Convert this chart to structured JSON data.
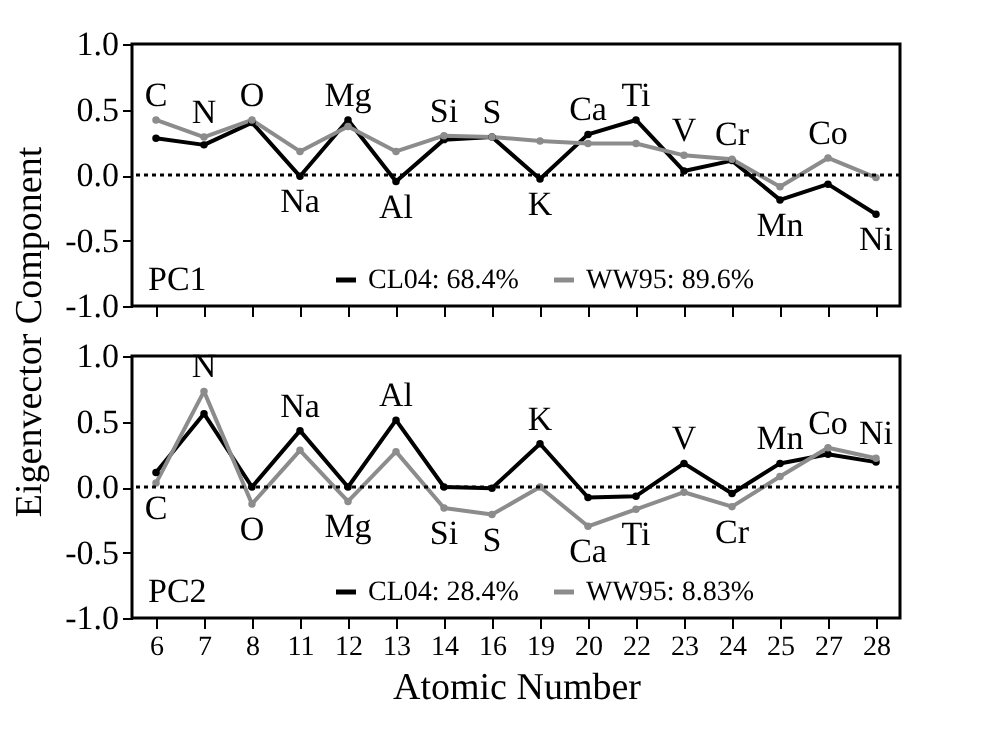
{
  "chart_data": [
    {
      "type": "line",
      "categories": [
        "6",
        "7",
        "8",
        "11",
        "12",
        "13",
        "14",
        "16",
        "19",
        "20",
        "22",
        "23",
        "24",
        "25",
        "27",
        "28"
      ],
      "series": [
        {
          "name": "CL04: 68.4%",
          "color": "#000000",
          "values": [
            0.28,
            0.23,
            0.4,
            -0.01,
            0.42,
            -0.05,
            0.27,
            0.29,
            -0.03,
            0.31,
            0.42,
            0.03,
            0.11,
            -0.19,
            -0.07,
            -0.3
          ]
        },
        {
          "name": "WW95: 89.6%",
          "color": "#8c8c8c",
          "values": [
            0.42,
            0.29,
            0.42,
            0.18,
            0.37,
            0.18,
            0.3,
            0.29,
            0.26,
            0.24,
            0.24,
            0.15,
            0.12,
            -0.09,
            0.13,
            -0.02
          ]
        }
      ],
      "ylabel": "Eigenvector Component",
      "ylim": [
        -1,
        1
      ],
      "yticks": [
        {
          "value": -1,
          "label": "-1.0"
        },
        {
          "value": -0.5,
          "label": "-0.5"
        },
        {
          "value": 0,
          "label": "0.0"
        },
        {
          "value": 0.5,
          "label": "0.5"
        },
        {
          "value": 1,
          "label": "1.0"
        }
      ],
      "ref_lines": [
        {
          "axis": "y",
          "value": 0,
          "line_style": "dotted"
        }
      ],
      "annotations": [
        "PC1",
        {
          "text": "C",
          "x": "6",
          "y": 0.42
        },
        {
          "text": "N",
          "x": "7",
          "y": 0.29
        },
        {
          "text": "O",
          "x": "8",
          "y": 0.42
        },
        {
          "text": "Na",
          "x": "11",
          "y": -0.01
        },
        {
          "text": "Mg",
          "x": "12",
          "y": 0.42
        },
        {
          "text": "Al",
          "x": "13",
          "y": -0.05
        },
        {
          "text": "Si",
          "x": "14",
          "y": 0.3
        },
        {
          "text": "S",
          "x": "16",
          "y": 0.29
        },
        {
          "text": "K",
          "x": "19",
          "y": -0.03
        },
        {
          "text": "Ca",
          "x": "20",
          "y": 0.31
        },
        {
          "text": "Ti",
          "x": "22",
          "y": 0.42
        },
        {
          "text": "V",
          "x": "23",
          "y": 0.15
        },
        {
          "text": "Cr",
          "x": "24",
          "y": 0.12
        },
        {
          "text": "Mn",
          "x": "25",
          "y": -0.19
        },
        {
          "text": "Co",
          "x": "27",
          "y": 0.13
        },
        {
          "text": "Ni",
          "x": "28",
          "y": -0.3
        }
      ],
      "legend": "bottom",
      "grid": false,
      "marker": "circle",
      "line_style": "solid",
      "tick_labels": "y"
    },
    {
      "type": "line",
      "categories": [
        "6",
        "7",
        "8",
        "11",
        "12",
        "13",
        "14",
        "16",
        "19",
        "20",
        "22",
        "23",
        "24",
        "25",
        "27",
        "28"
      ],
      "series": [
        {
          "name": "CL04: 28.4%",
          "color": "#000000",
          "values": [
            0.11,
            0.56,
            0.0,
            0.43,
            0.0,
            0.51,
            0.0,
            -0.01,
            0.33,
            -0.08,
            -0.07,
            0.18,
            -0.05,
            0.18,
            0.25,
            0.19
          ]
        },
        {
          "name": "WW95: 8.83%",
          "color": "#8c8c8c",
          "values": [
            0.03,
            0.73,
            -0.13,
            0.28,
            -0.11,
            0.27,
            -0.16,
            -0.21,
            0.0,
            -0.3,
            -0.17,
            -0.04,
            -0.15,
            0.08,
            0.3,
            0.22
          ]
        }
      ],
      "xlabel": "Atomic Number",
      "ylim": [
        -1,
        1
      ],
      "yticks": [
        {
          "value": -1,
          "label": "-1.0"
        },
        {
          "value": -0.5,
          "label": "-0.5"
        },
        {
          "value": 0,
          "label": "0.0"
        },
        {
          "value": 0.5,
          "label": "0.5"
        },
        {
          "value": 1,
          "label": "1.0"
        }
      ],
      "ref_lines": [
        {
          "axis": "y",
          "value": 0,
          "line_style": "dotted"
        }
      ],
      "annotations": [
        "PC2",
        {
          "text": "C",
          "x": "6",
          "y": 0.03
        },
        {
          "text": "N",
          "x": "7",
          "y": 0.73
        },
        {
          "text": "O",
          "x": "8",
          "y": -0.13
        },
        {
          "text": "Na",
          "x": "11",
          "y": 0.43
        },
        {
          "text": "Mg",
          "x": "12",
          "y": -0.11
        },
        {
          "text": "Al",
          "x": "13",
          "y": 0.51
        },
        {
          "text": "Si",
          "x": "14",
          "y": -0.16
        },
        {
          "text": "S",
          "x": "16",
          "y": -0.21
        },
        {
          "text": "K",
          "x": "19",
          "y": 0.33
        },
        {
          "text": "Ca",
          "x": "20",
          "y": -0.3
        },
        {
          "text": "Ti",
          "x": "22",
          "y": -0.17
        },
        {
          "text": "V",
          "x": "23",
          "y": 0.18
        },
        {
          "text": "Cr",
          "x": "24",
          "y": -0.15
        },
        {
          "text": "Mn",
          "x": "25",
          "y": 0.18
        },
        {
          "text": "Co",
          "x": "27",
          "y": 0.3
        },
        {
          "text": "Ni",
          "x": "28",
          "y": 0.22
        }
      ],
      "legend": "bottom",
      "grid": false,
      "marker": "circle",
      "line_style": "solid"
    }
  ]
}
